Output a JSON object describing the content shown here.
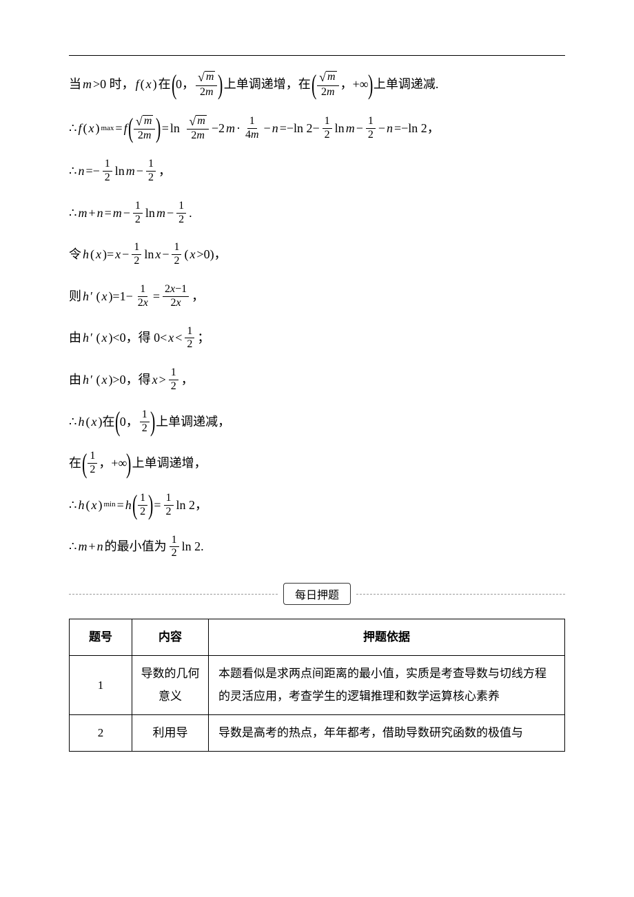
{
  "font": {
    "body_size_pt": 14,
    "math_family": "Times New Roman",
    "cn_family": "SimSun"
  },
  "colors": {
    "text": "#000000",
    "bg": "#ffffff",
    "rule": "#000000",
    "dash": "#999999"
  },
  "lines": {
    "l1a": "当 ",
    "l1b": ">0 时，",
    "l1c": "在",
    "l1d": "上单调递增，在",
    "l1e": "上单调递减.",
    "l2a": "∴",
    "l2eq": "=",
    "l2ln": "ln",
    "l2minus2m": "−2",
    "l2dot": "·",
    "l2minus_n": "−",
    "l2eqneg": "=−ln 2−",
    "l2lnm": "ln ",
    "l2half_minus": "−",
    "l2tail": "−",
    "l2final": "=−ln 2，",
    "l3a": "∴",
    "l3b": "=−",
    "l3c": "ln ",
    "l3d": "−",
    "l3e": "，",
    "l4a": "∴",
    "l4b": "+",
    "l4c": "=",
    "l4d": "−",
    "l4e": "ln ",
    "l4f": "−",
    "l4g": ".",
    "l5a": "令 ",
    "l5b": "(",
    "l5c": ")=",
    "l5d": "−",
    "l5e": "ln ",
    "l5f": "−",
    "l5g": "(",
    "l5h": ">0)，",
    "l6a": "则 ",
    "l6b": "′ (",
    "l6c": ")=1−",
    "l6d": "=",
    "l6e": "，",
    "l7a": "由 ",
    "l7b": "′ (",
    "l7c": ")<0，得 0<",
    "l7d": "<",
    "l7e": "；",
    "l8a": "由 ",
    "l8b": "′ (",
    "l8c": ")>0，得 ",
    "l8d": ">",
    "l8e": "，",
    "l9a": "∴",
    "l9b": "(",
    "l9c": ")在",
    "l9d": "上单调递减，",
    "l10a": "在",
    "l10b": "上单调递增，",
    "l11a": "∴",
    "l11b": "(",
    "l11c": ")",
    "l11d": "=",
    "l11e": "=",
    "l11f": "ln 2，",
    "l12a": "∴",
    "l12b": "+",
    "l12c": " 的最小值为 ",
    "l12d": "ln 2."
  },
  "tokens": {
    "m": "m",
    "n": "n",
    "x": "x",
    "f": "f",
    "h": "h",
    "half_num": "1",
    "half_den": "2",
    "sqrt_m": "m",
    "two_m": "2m",
    "four_m": "4m",
    "inf": "+∞",
    "zero": "0",
    "comma": "，",
    "max": "max",
    "min": "min",
    "two_x": "2x",
    "two_x_minus_1": "2x−1"
  },
  "divider": {
    "label": "每日押题"
  },
  "table": {
    "headers": [
      "题号",
      "内容",
      "押题依据"
    ],
    "rows": [
      {
        "q": "1",
        "c": "导数的几何意义",
        "r": "本题看似是求两点间距离的最小值，实质是考查导数与切线方程的灵活应用，考查学生的逻辑推理和数学运算核心素养"
      },
      {
        "q": "2",
        "c": "利用导",
        "r": "导数是高考的热点，年年都考，借助导数研究函数的极值与"
      }
    ]
  }
}
